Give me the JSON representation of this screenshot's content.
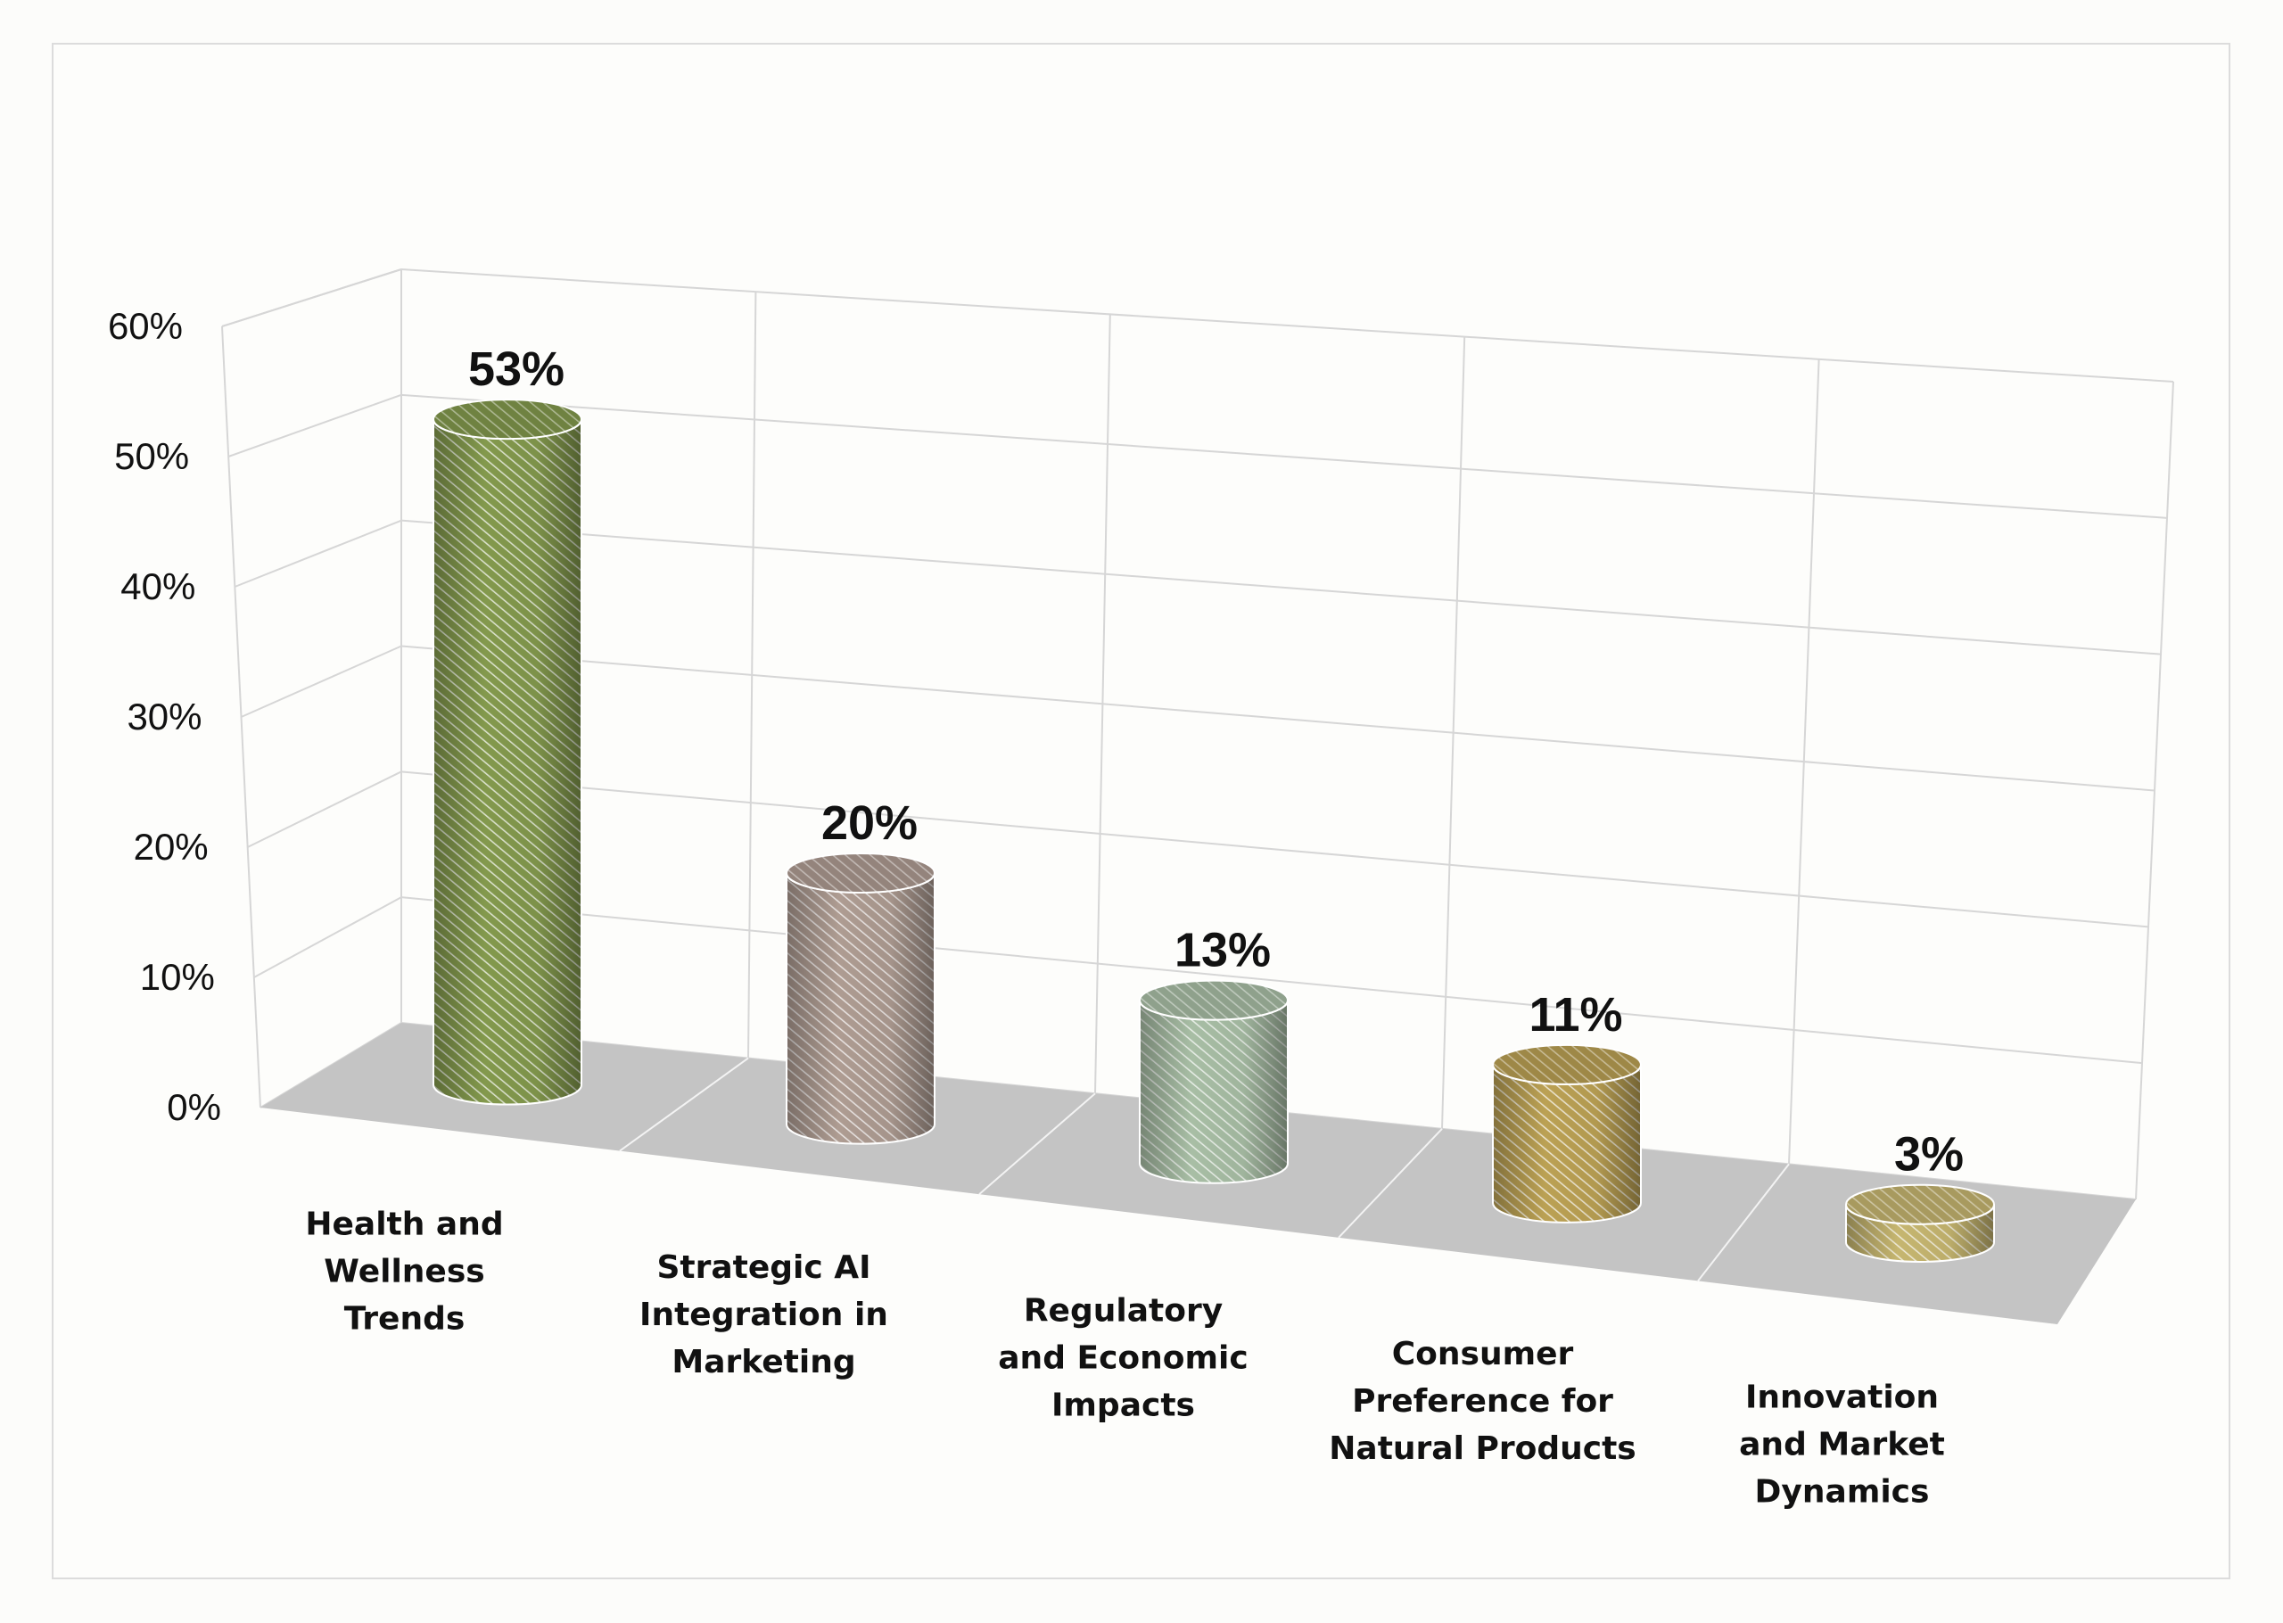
{
  "chart_data": {
    "type": "bar",
    "style": "3d-cylinder",
    "categories": [
      [
        "Health and",
        "Wellness",
        "Trends"
      ],
      [
        "Strategic AI",
        "Integration in",
        "Marketing"
      ],
      [
        "Regulatory",
        "and Economic",
        "Impacts"
      ],
      [
        "Consumer",
        "Preference for",
        "Natural Products"
      ],
      [
        "Innovation",
        "and Market",
        "Dynamics"
      ]
    ],
    "values": [
      53,
      20,
      13,
      11,
      3
    ],
    "data_labels": [
      "53%",
      "20%",
      "13%",
      "11%",
      "3%"
    ],
    "colors": [
      "#9ab45a",
      "#cdb8ac",
      "#c6e0c2",
      "#dcbd63",
      "#e9d684"
    ],
    "ylim": [
      0,
      60
    ],
    "yticks": [
      "0%",
      "10%",
      "20%",
      "30%",
      "40%",
      "50%",
      "60%"
    ],
    "grid": true,
    "floor_color": "#c4c4c4",
    "title": "",
    "xlabel": "",
    "ylabel": ""
  }
}
